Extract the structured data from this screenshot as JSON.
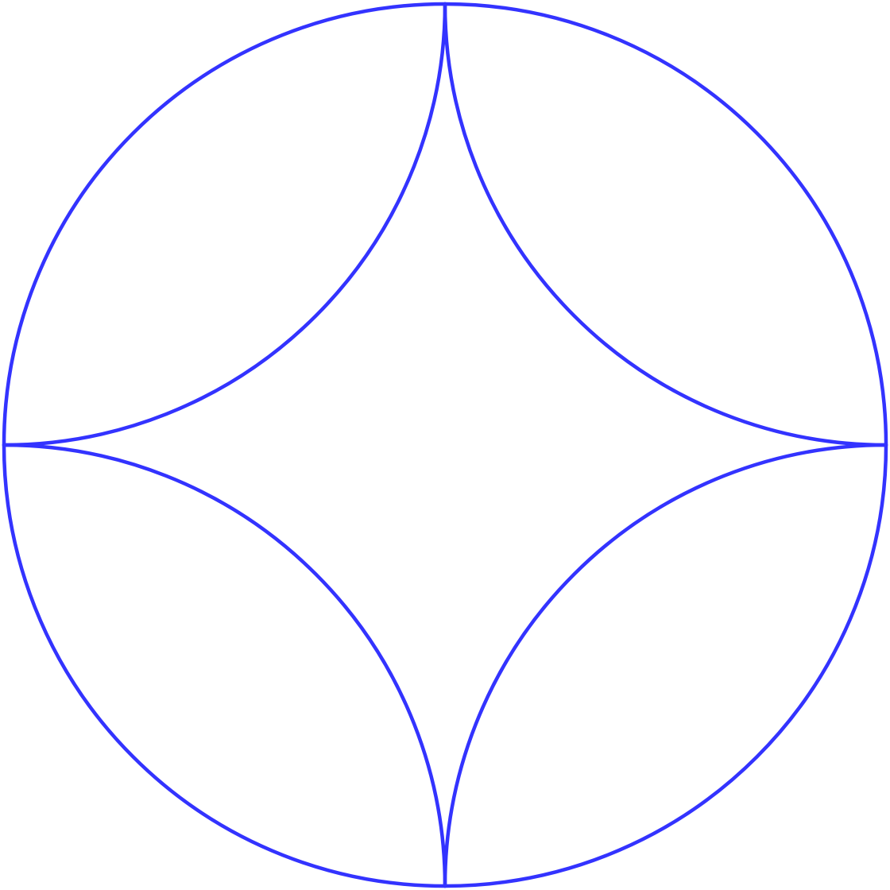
{
  "figure": {
    "kind": "geometric-line-drawing",
    "elements": [
      "outer-circle",
      "inner-arc-top-left",
      "inner-arc-top-right",
      "inner-arc-bottom-left",
      "inner-arc-bottom-right"
    ],
    "stroke_color": "#3333ff",
    "background_color": "#ffffff"
  }
}
